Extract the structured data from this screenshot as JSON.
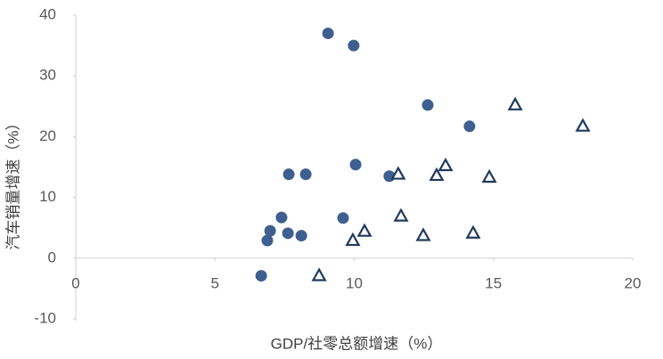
{
  "chart_data": {
    "type": "scatter",
    "x_label": "GDP/社零总额增速（%）",
    "y_label": "汽车销量增速（%）",
    "xlim": [
      0,
      20
    ],
    "xticks": [
      0,
      5,
      10,
      15,
      20
    ],
    "ylim": [
      -10,
      40
    ],
    "yticks": [
      -10,
      0,
      10,
      20,
      30,
      40
    ],
    "grid": false,
    "series": [
      {
        "marker": "circle",
        "color": "#3e5f8f",
        "x": [
          9.06,
          9.98,
          12.64,
          14.14,
          10.05,
          7.65,
          8.26,
          11.26,
          7.39,
          9.6,
          6.98,
          7.62,
          8.1,
          6.88,
          6.66
        ],
        "values": [
          37.0,
          35.0,
          25.2,
          21.7,
          15.4,
          13.8,
          13.8,
          13.5,
          6.7,
          6.6,
          4.5,
          4.1,
          3.7,
          2.9,
          -2.9
        ]
      },
      {
        "marker": "triangle",
        "color": "#203a5c",
        "x": [
          15.78,
          18.21,
          13.28,
          11.58,
          12.96,
          14.85,
          11.68,
          10.37,
          14.27,
          12.48,
          9.95,
          8.74
        ],
        "values": [
          25.2,
          21.7,
          15.2,
          13.8,
          13.6,
          13.3,
          6.9,
          4.4,
          4.1,
          3.7,
          2.9,
          -2.9
        ]
      }
    ]
  }
}
